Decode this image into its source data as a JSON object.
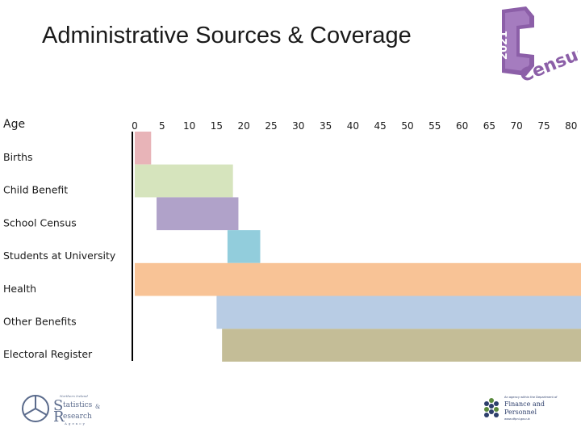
{
  "title": "Administrative Sources & Coverage",
  "census_logo": {
    "year": "2021",
    "word": "Census",
    "color": "#8c5fa8"
  },
  "chart_data": {
    "type": "bar",
    "orientation": "horizontal-range",
    "title": "Administrative Sources & Coverage",
    "xlabel": "Age",
    "ylabel": "",
    "x_ticks": [
      0,
      5,
      10,
      15,
      20,
      25,
      30,
      35,
      40,
      45,
      50,
      55,
      60,
      65,
      70,
      75,
      80
    ],
    "xlim": [
      0,
      80
    ],
    "grid": false,
    "categories": [
      "Births",
      "Child Benefit",
      "School Census",
      "Students at University",
      "Health",
      "Other Benefits",
      "Electoral Register"
    ],
    "ranges": [
      {
        "label": "Births",
        "start": 0,
        "end": 3,
        "color": "#e8b4b8"
      },
      {
        "label": "Child Benefit",
        "start": 0,
        "end": 18,
        "color": "#d6e4bd"
      },
      {
        "label": "School Census",
        "start": 4,
        "end": 19,
        "color": "#b0a2c9"
      },
      {
        "label": "Students at University",
        "start": 17,
        "end": 23,
        "color": "#92cddc"
      },
      {
        "label": "Health",
        "start": 0,
        "end": 82,
        "color": "#f8c396"
      },
      {
        "label": "Other Benefits",
        "start": 15,
        "end": 82,
        "color": "#b8cce4"
      },
      {
        "label": "Electoral Register",
        "start": 16,
        "end": 82,
        "color": "#c4bd97"
      }
    ]
  },
  "nisra_logo": {
    "line1": "Northern Ireland",
    "line2": "tatistics",
    "line3": "esearch",
    "amp": "&",
    "line4": "Agency"
  },
  "dfp_logo": {
    "line1": "An agency within the Department of",
    "line2": "Finance and",
    "line3": "Personnel",
    "line4": "www.dfpni.gov.uk"
  }
}
